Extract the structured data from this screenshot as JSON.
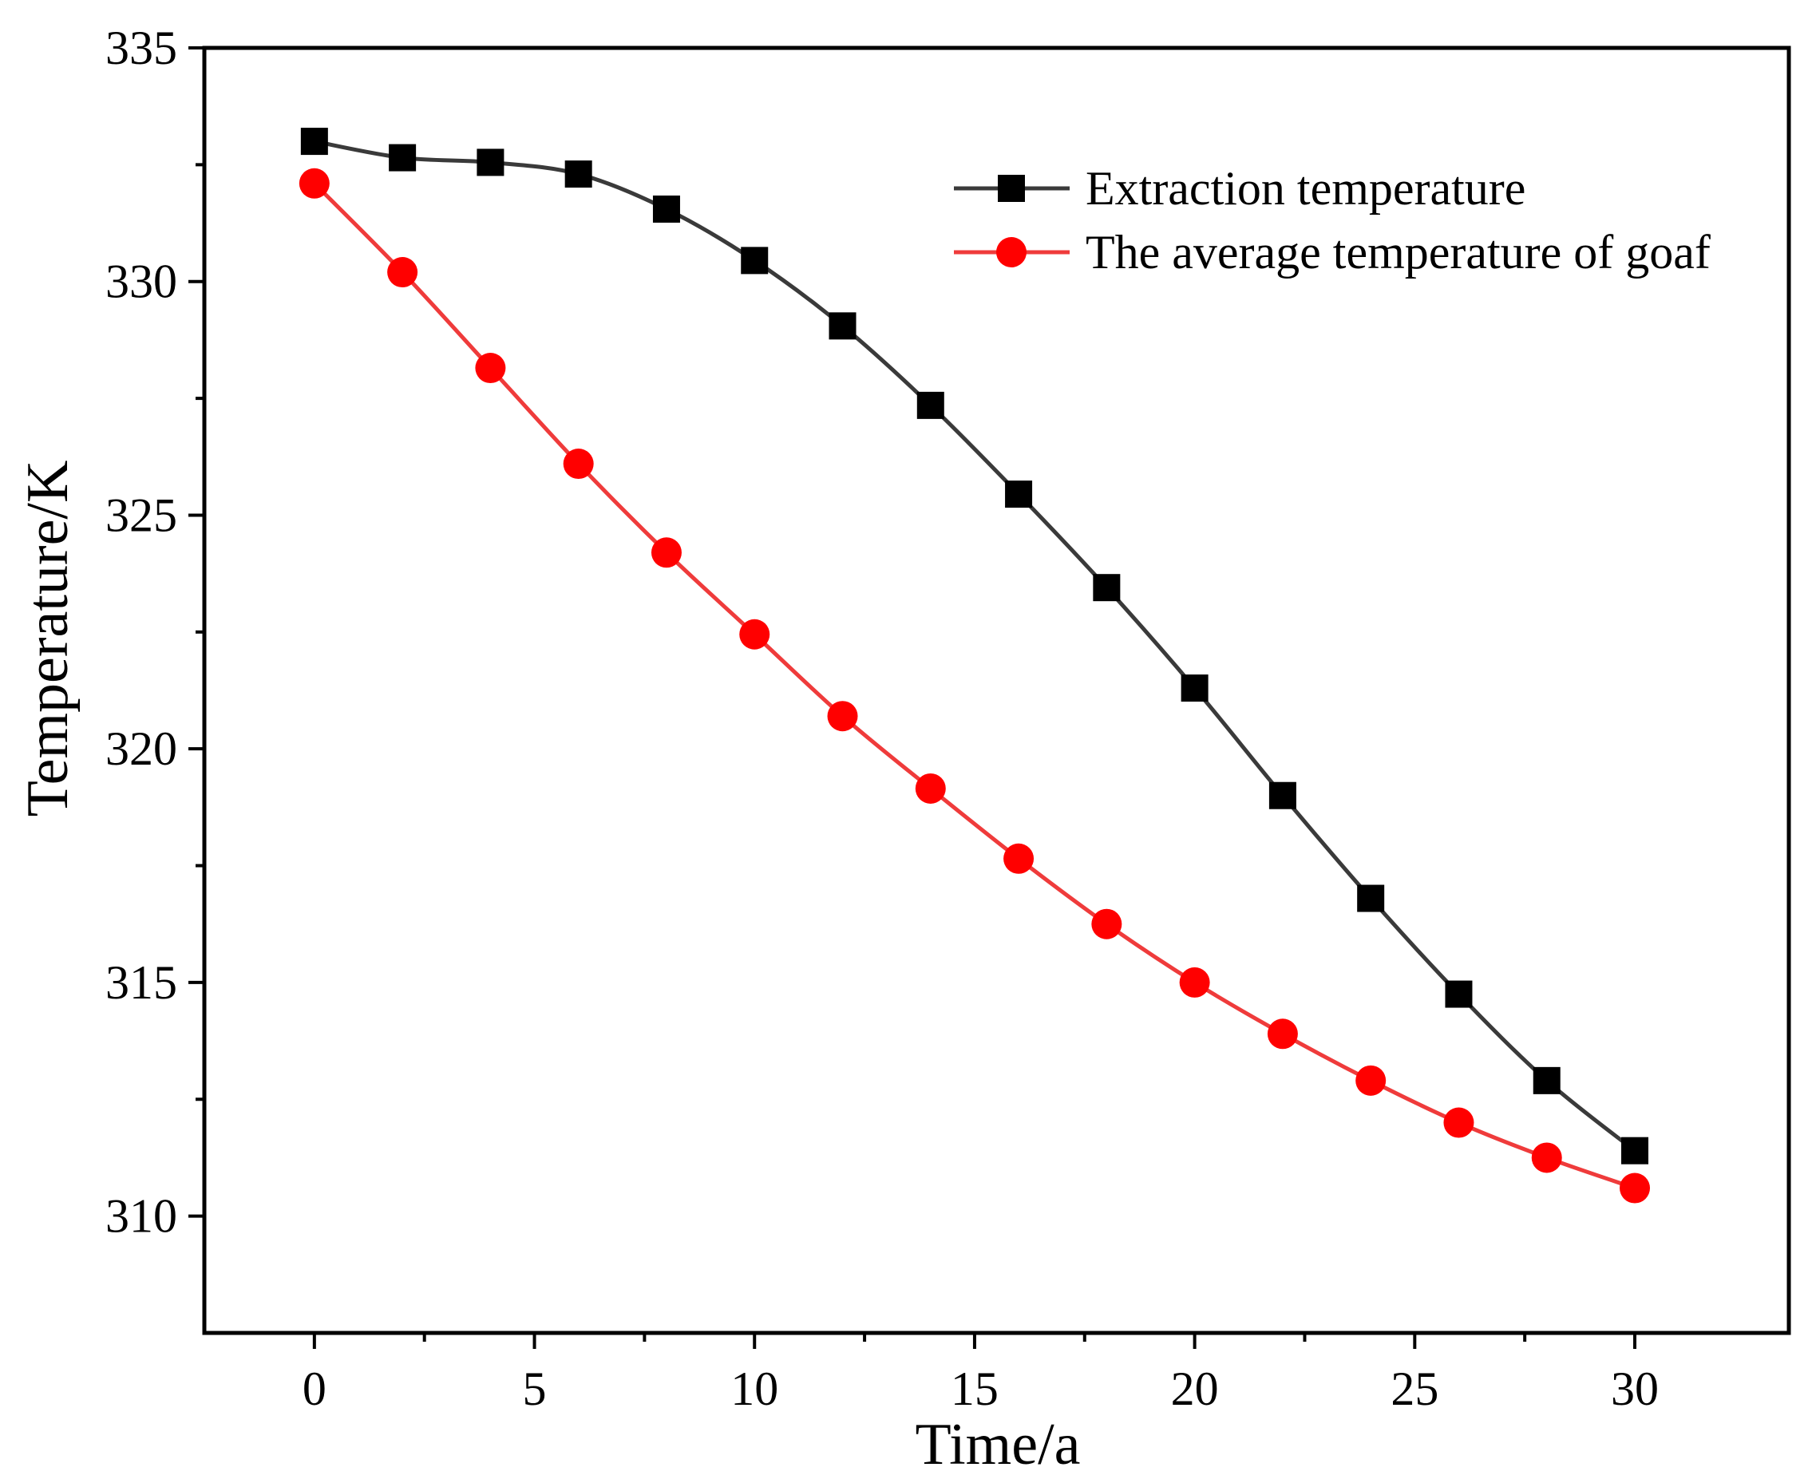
{
  "chart_data": {
    "type": "line",
    "title": "",
    "xlabel": "Time/a",
    "ylabel": "Temperature/K",
    "xlim": [
      -2.5,
      33.5
    ],
    "ylim": [
      307.5,
      335
    ],
    "xticks": [
      0,
      5,
      10,
      15,
      20,
      25,
      30
    ],
    "yticks": [
      310,
      315,
      320,
      325,
      330,
      335
    ],
    "legend_position": "top-right",
    "grid": false,
    "x": [
      0,
      2,
      4,
      6,
      8,
      10,
      12,
      14,
      16,
      18,
      20,
      22,
      24,
      26,
      28,
      30
    ],
    "series": [
      {
        "name": "Extraction temperature",
        "color": "#3a3a3a",
        "marker": "square",
        "marker_color": "#000000",
        "values": [
          333.0,
          332.65,
          332.55,
          332.3,
          331.55,
          330.45,
          329.05,
          327.35,
          325.45,
          323.45,
          321.3,
          319.0,
          316.8,
          314.75,
          312.9,
          311.4
        ]
      },
      {
        "name": "The average temperature of goaf",
        "color": "#ef3b3b",
        "marker": "circle",
        "marker_color": "#ff0000",
        "values": [
          332.1,
          330.2,
          328.15,
          326.1,
          324.2,
          322.45,
          320.7,
          319.15,
          317.65,
          316.25,
          315.0,
          313.9,
          312.9,
          312.0,
          311.25,
          310.6
        ]
      }
    ]
  }
}
